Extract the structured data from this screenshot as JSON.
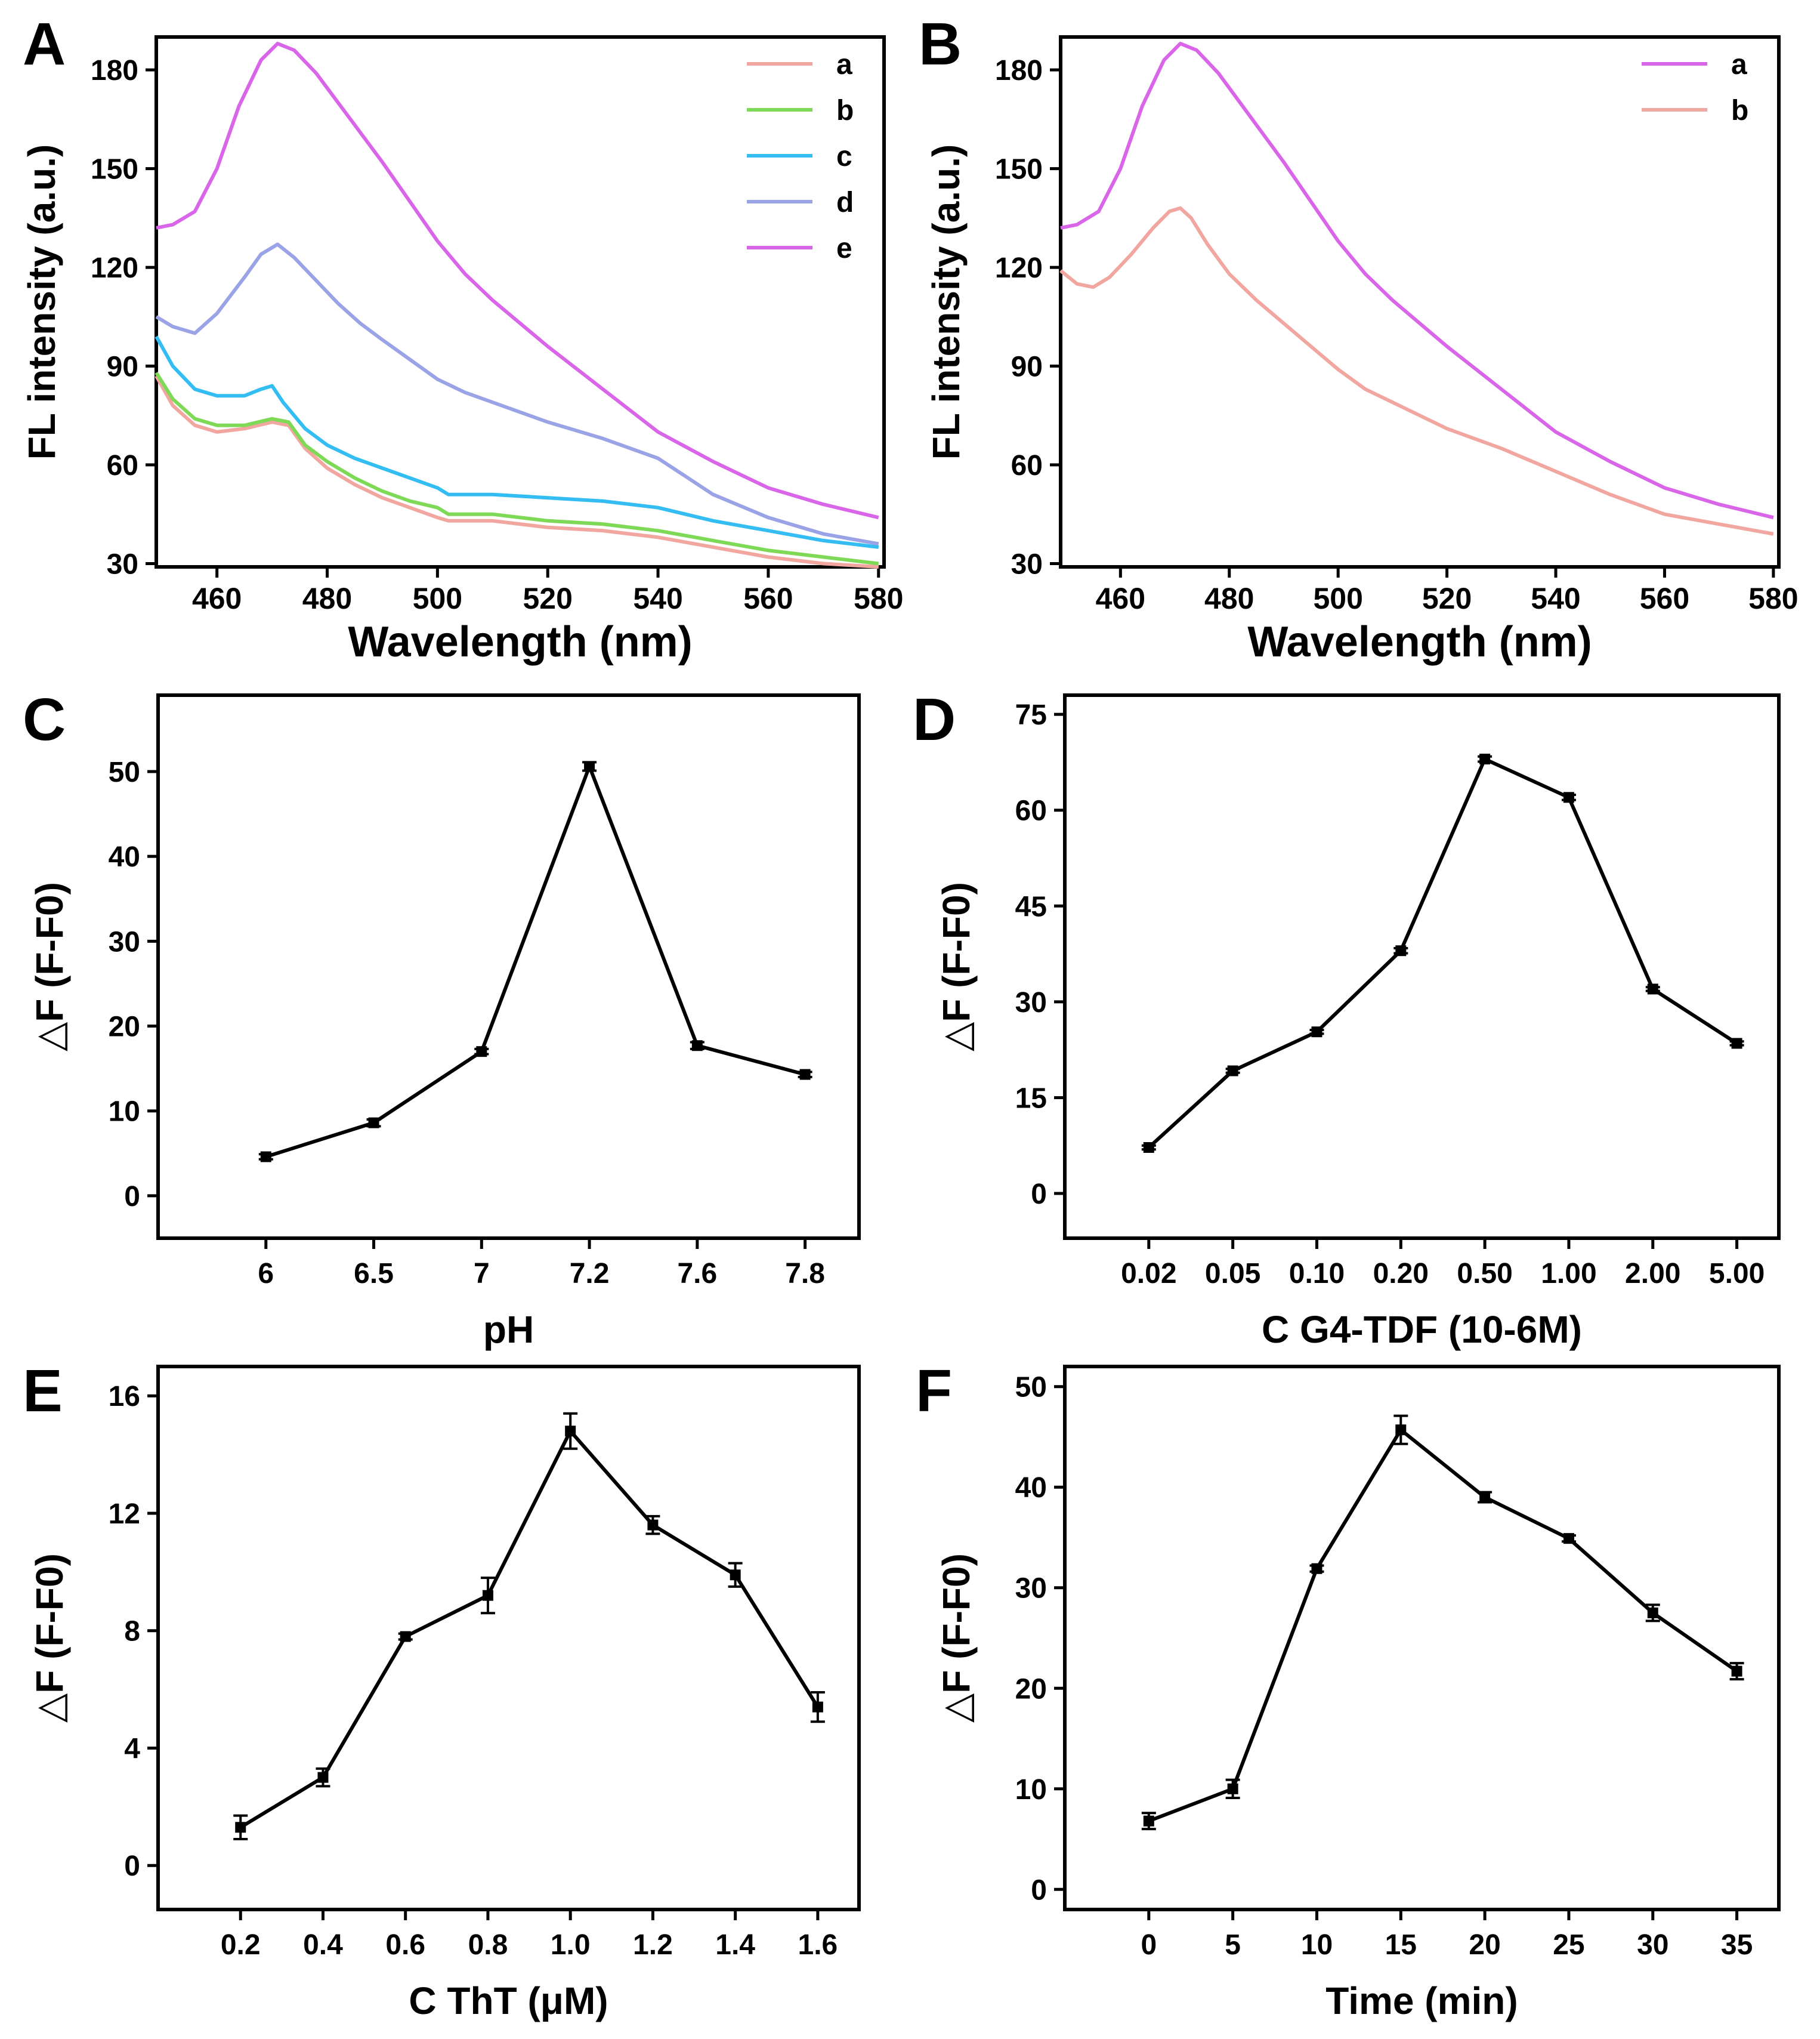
{
  "chart_data": [
    {
      "id": "A",
      "panel_label": "A",
      "type": "line",
      "xlabel": "Wavelength (nm)",
      "ylabel": "FL intensity (a.u.)",
      "xlim": [
        449,
        581
      ],
      "ylim": [
        29,
        190
      ],
      "xticks": [
        460,
        480,
        500,
        520,
        540,
        560,
        580
      ],
      "yticks": [
        30,
        60,
        90,
        120,
        150,
        180
      ],
      "legend": "top-right",
      "series": [
        {
          "name": "a",
          "color": "#f2a6a0",
          "x": [
            449,
            452,
            456,
            460,
            465,
            470,
            473,
            476,
            480,
            485,
            490,
            495,
            500,
            502,
            510,
            520,
            530,
            540,
            550,
            560,
            570,
            580
          ],
          "y": [
            87,
            78,
            72,
            70,
            71,
            73,
            72,
            65,
            59,
            54,
            50,
            47,
            44,
            43,
            43,
            41,
            40,
            38,
            35,
            32,
            30,
            29
          ]
        },
        {
          "name": "b",
          "color": "#7ed957",
          "x": [
            449,
            452,
            456,
            460,
            465,
            470,
            473,
            476,
            480,
            485,
            490,
            495,
            500,
            502,
            510,
            520,
            530,
            540,
            550,
            560,
            570,
            580
          ],
          "y": [
            88,
            80,
            74,
            72,
            72,
            74,
            73,
            66,
            61,
            56,
            52,
            49,
            47,
            45,
            45,
            43,
            42,
            40,
            37,
            34,
            32,
            30
          ]
        },
        {
          "name": "c",
          "color": "#33bdf2",
          "x": [
            449,
            452,
            456,
            460,
            465,
            468,
            470,
            472,
            476,
            480,
            485,
            490,
            495,
            500,
            502,
            510,
            520,
            530,
            540,
            550,
            560,
            570,
            580
          ],
          "y": [
            99,
            90,
            83,
            81,
            81,
            83,
            84,
            79,
            71,
            66,
            62,
            59,
            56,
            53,
            51,
            51,
            50,
            49,
            47,
            43,
            40,
            37,
            35
          ]
        },
        {
          "name": "d",
          "color": "#9aa3e6",
          "x": [
            449,
            452,
            456,
            460,
            465,
            468,
            471,
            474,
            478,
            482,
            486,
            490,
            495,
            500,
            505,
            510,
            520,
            530,
            540,
            550,
            560,
            570,
            580
          ],
          "y": [
            105,
            102,
            100,
            106,
            117,
            124,
            127,
            123,
            116,
            109,
            103,
            98,
            92,
            86,
            82,
            79,
            73,
            68,
            62,
            51,
            44,
            39,
            36
          ]
        },
        {
          "name": "e",
          "color": "#d966e8",
          "x": [
            449,
            452,
            456,
            460,
            464,
            468,
            471,
            474,
            478,
            482,
            486,
            490,
            495,
            500,
            505,
            510,
            520,
            530,
            540,
            550,
            560,
            570,
            580
          ],
          "y": [
            132,
            133,
            137,
            150,
            169,
            183,
            188,
            186,
            179,
            170,
            161,
            152,
            140,
            128,
            118,
            110,
            96,
            83,
            70,
            61,
            53,
            48,
            44
          ]
        }
      ]
    },
    {
      "id": "B",
      "panel_label": "B",
      "type": "line",
      "xlabel": "Wavelength (nm)",
      "ylabel": "FL intensity (a.u.)",
      "xlim": [
        449,
        581
      ],
      "ylim": [
        29,
        190
      ],
      "xticks": [
        460,
        480,
        500,
        520,
        540,
        560,
        580
      ],
      "yticks": [
        30,
        60,
        90,
        120,
        150,
        180
      ],
      "legend": "top-right",
      "series": [
        {
          "name": "a",
          "color": "#d966e8",
          "x": [
            449,
            452,
            456,
            460,
            464,
            468,
            471,
            474,
            478,
            482,
            486,
            490,
            495,
            500,
            505,
            510,
            520,
            530,
            540,
            550,
            560,
            570,
            580
          ],
          "y": [
            132,
            133,
            137,
            150,
            169,
            183,
            188,
            186,
            179,
            170,
            161,
            152,
            140,
            128,
            118,
            110,
            96,
            83,
            70,
            61,
            53,
            48,
            44
          ]
        },
        {
          "name": "b",
          "color": "#f2a6a0",
          "x": [
            449,
            452,
            455,
            458,
            462,
            466,
            469,
            471,
            473,
            476,
            480,
            485,
            490,
            495,
            500,
            505,
            510,
            520,
            530,
            540,
            550,
            560,
            570,
            580
          ],
          "y": [
            119,
            115,
            114,
            117,
            124,
            132,
            137,
            138,
            135,
            127,
            118,
            110,
            103,
            96,
            89,
            83,
            79,
            71,
            65,
            58,
            51,
            45,
            42,
            39
          ]
        }
      ]
    },
    {
      "id": "C",
      "panel_label": "C",
      "type": "line",
      "xlabel": "pH",
      "ylabel": "△F (F-F0)",
      "categories": [
        "6",
        "6.5",
        "7",
        "7.2",
        "7.6",
        "7.8"
      ],
      "values": [
        4.6,
        8.6,
        17.0,
        50.6,
        17.7,
        14.3
      ],
      "errors": [
        0.3,
        0.4,
        0.3,
        0.5,
        0.4,
        0.3
      ],
      "ylim": [
        -5,
        59
      ],
      "yticks": [
        0,
        10,
        20,
        30,
        40,
        50
      ]
    },
    {
      "id": "D",
      "panel_label": "D",
      "type": "line",
      "xlabel": "C G4-TDF (10-6M)",
      "ylabel": "△F (F-F0)",
      "categories": [
        "0.02",
        "0.05",
        "0.10",
        "0.20",
        "0.50",
        "1.00",
        "2.00",
        "5.00"
      ],
      "values": [
        7.2,
        19.2,
        25.3,
        38.0,
        68.0,
        62.0,
        32.0,
        23.5
      ],
      "errors": [
        0.3,
        0.3,
        0.3,
        0.4,
        0.4,
        0.4,
        0.3,
        0.3
      ],
      "ylim": [
        -7,
        78
      ],
      "yticks": [
        0,
        15,
        30,
        45,
        60,
        75
      ]
    },
    {
      "id": "E",
      "panel_label": "E",
      "type": "line",
      "xlabel": "C ThT (μM)",
      "ylabel": "△F (F-F0)",
      "categories": [
        "0.2",
        "0.4",
        "0.6",
        "0.8",
        "1.0",
        "1.2",
        "1.4",
        "1.6"
      ],
      "values": [
        1.3,
        3.0,
        7.8,
        9.2,
        14.8,
        11.6,
        9.9,
        5.4
      ],
      "errors": [
        0.4,
        0.3,
        0.1,
        0.6,
        0.6,
        0.3,
        0.4,
        0.5
      ],
      "ylim": [
        -1.5,
        17
      ],
      "yticks": [
        0,
        4,
        8,
        12,
        16
      ]
    },
    {
      "id": "F",
      "panel_label": "F",
      "type": "line",
      "xlabel": "Time (min)",
      "ylabel": "△F (F-F0)",
      "categories": [
        "0",
        "5",
        "10",
        "15",
        "20",
        "25",
        "30",
        "35"
      ],
      "values": [
        6.8,
        10.0,
        31.9,
        45.7,
        39.0,
        34.9,
        27.5,
        21.7
      ],
      "errors": [
        0.8,
        0.9,
        0.3,
        1.4,
        0.5,
        0.3,
        0.8,
        0.8
      ],
      "ylim": [
        -2,
        52
      ],
      "yticks": [
        0,
        10,
        20,
        30,
        40,
        50
      ]
    }
  ]
}
